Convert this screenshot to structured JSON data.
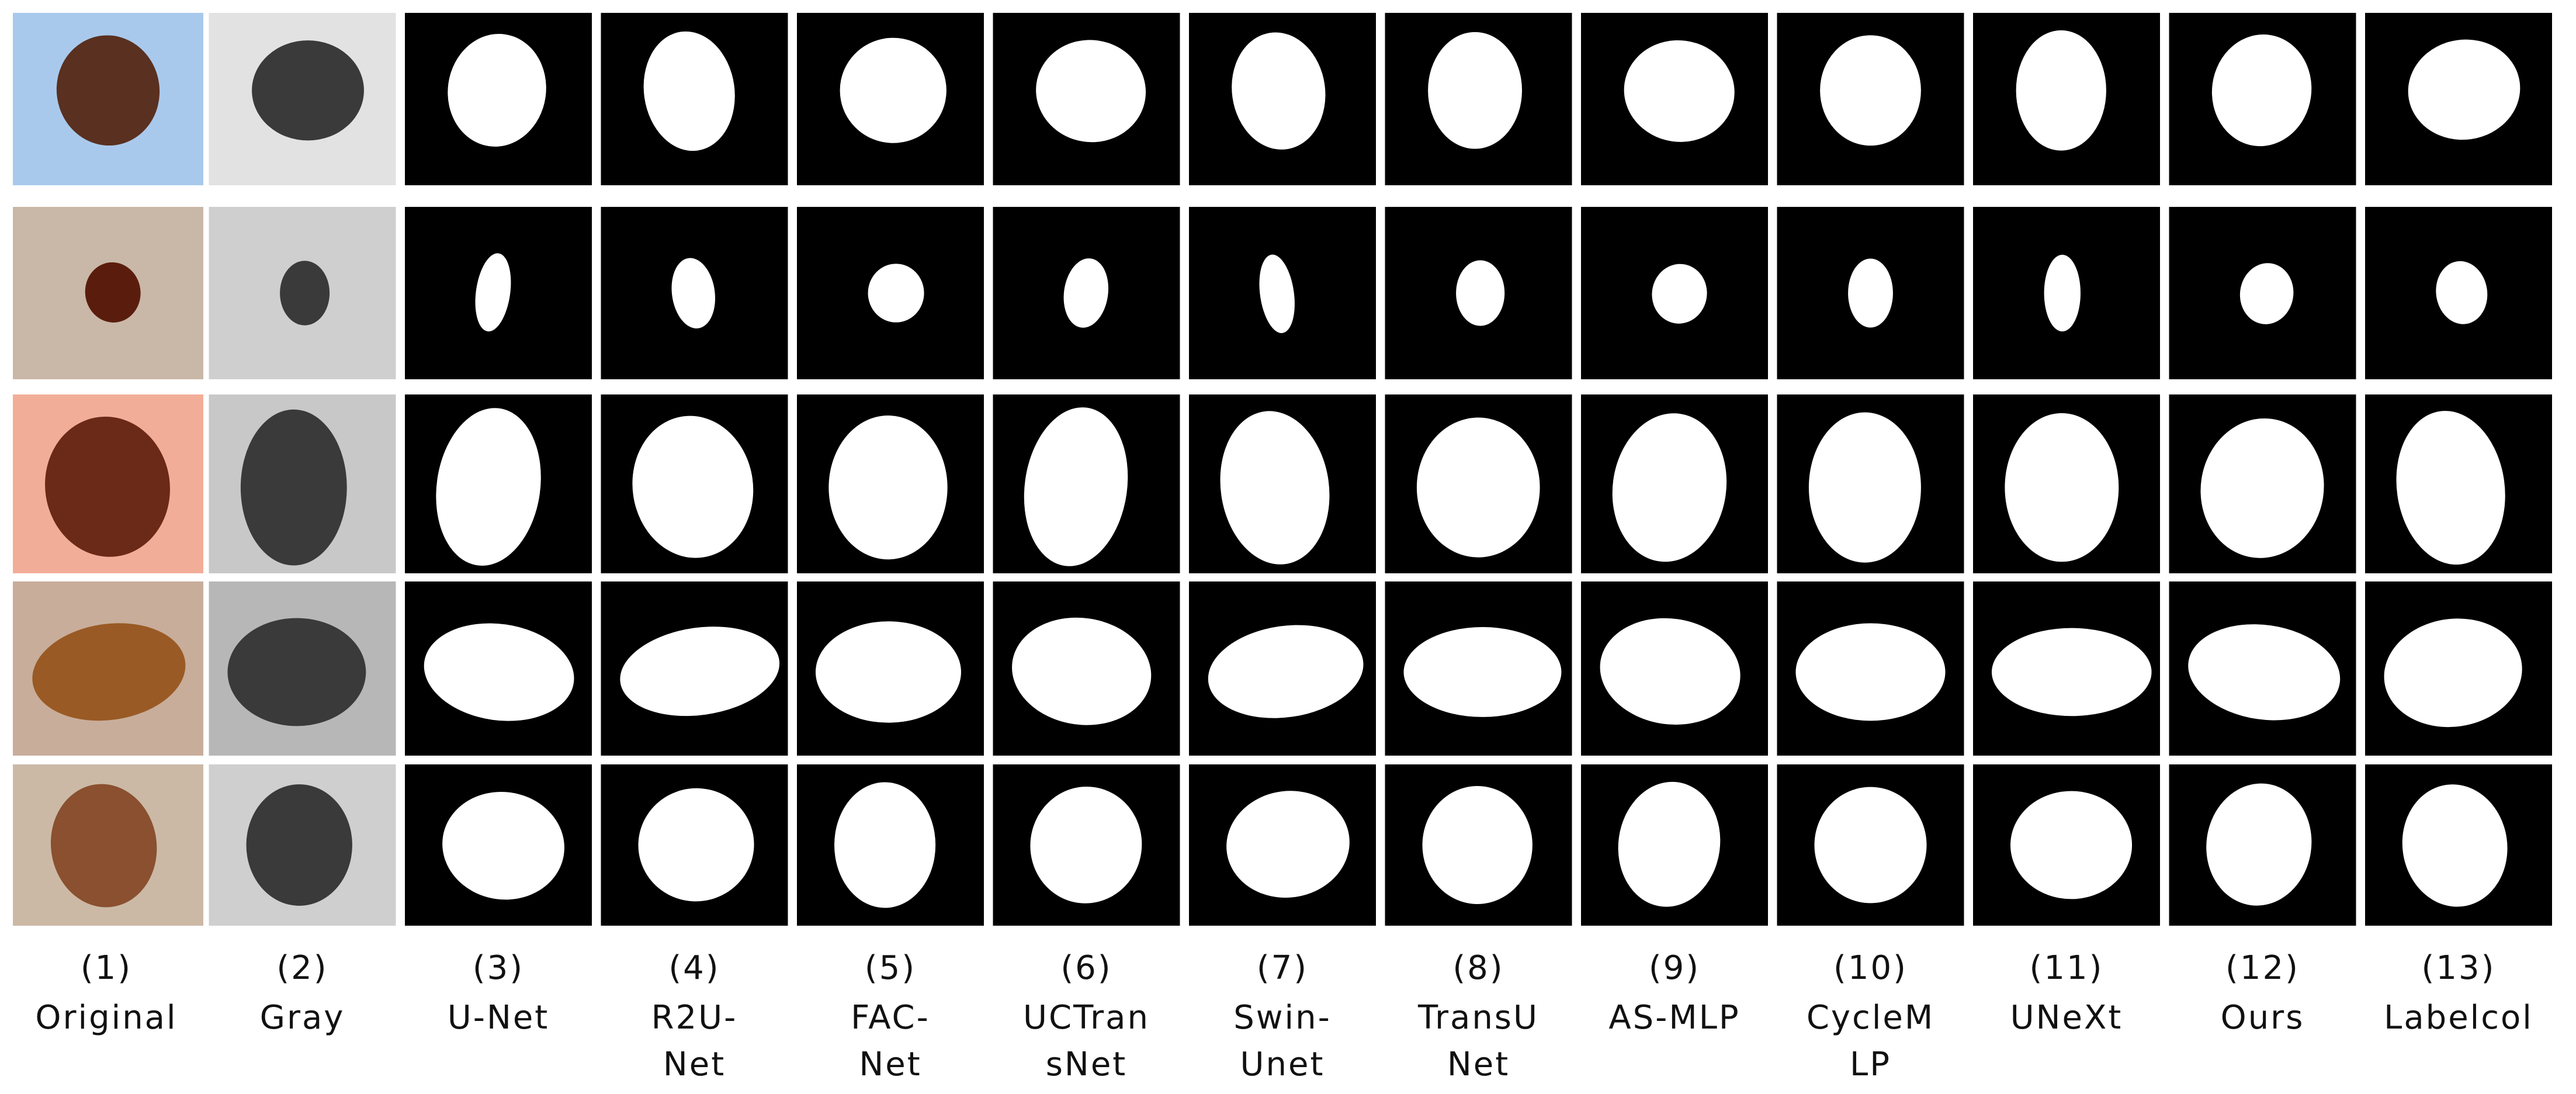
{
  "columns": [
    {
      "number": "(1)",
      "lines": [
        "Original"
      ]
    },
    {
      "number": "(2)",
      "lines": [
        "Gray"
      ]
    },
    {
      "number": "(3)",
      "lines": [
        "U-Net"
      ]
    },
    {
      "number": "(4)",
      "lines": [
        "R2U-",
        "Net"
      ]
    },
    {
      "number": "(5)",
      "lines": [
        "FAC-",
        "Net"
      ]
    },
    {
      "number": "(6)",
      "lines": [
        "UCTran",
        "sNet"
      ]
    },
    {
      "number": "(7)",
      "lines": [
        "Swin-",
        "Unet"
      ]
    },
    {
      "number": "(8)",
      "lines": [
        "TransU",
        "Net"
      ]
    },
    {
      "number": "(9)",
      "lines": [
        "AS-MLP"
      ]
    },
    {
      "number": "(10)",
      "lines": [
        "CycleM",
        "LP"
      ]
    },
    {
      "number": "(11)",
      "lines": [
        "UNeXt"
      ]
    },
    {
      "number": "(12)",
      "lines": [
        "Ours"
      ]
    },
    {
      "number": "(13)",
      "lines": [
        "Labelcol"
      ]
    }
  ]
}
